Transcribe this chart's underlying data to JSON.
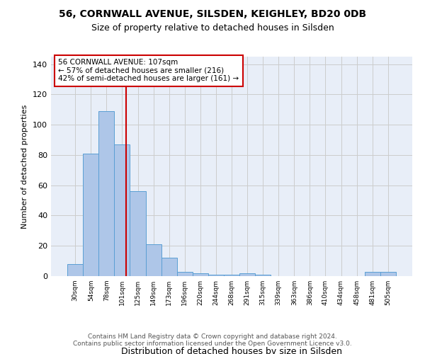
{
  "title_line1": "56, CORNWALL AVENUE, SILSDEN, KEIGHLEY, BD20 0DB",
  "title_line2": "Size of property relative to detached houses in Silsden",
  "xlabel": "Distribution of detached houses by size in Silsden",
  "ylabel": "Number of detached properties",
  "bar_heights": [
    8,
    81,
    109,
    87,
    56,
    21,
    12,
    3,
    2,
    1,
    1,
    2,
    1,
    0,
    0,
    0,
    0,
    0,
    0,
    3,
    3
  ],
  "bar_color": "#aec6e8",
  "bar_edge_color": "#5a9fd4",
  "property_size": 107,
  "vline_color": "#cc0000",
  "annotation_text": "56 CORNWALL AVENUE: 107sqm\n← 57% of detached houses are smaller (216)\n42% of semi-detached houses are larger (161) →",
  "annotation_box_color": "#ffffff",
  "annotation_box_edge_color": "#cc0000",
  "ylim": [
    0,
    145
  ],
  "yticks": [
    0,
    20,
    40,
    60,
    80,
    100,
    120,
    140
  ],
  "grid_color": "#cccccc",
  "background_color": "#e8eef8",
  "footer_text": "Contains HM Land Registry data © Crown copyright and database right 2024.\nContains public sector information licensed under the Open Government Licence v3.0.",
  "tick_labels": [
    "30sqm",
    "54sqm",
    "78sqm",
    "101sqm",
    "125sqm",
    "149sqm",
    "173sqm",
    "196sqm",
    "220sqm",
    "244sqm",
    "268sqm",
    "291sqm",
    "315sqm",
    "339sqm",
    "363sqm",
    "386sqm",
    "410sqm",
    "434sqm",
    "458sqm",
    "481sqm",
    "505sqm"
  ]
}
